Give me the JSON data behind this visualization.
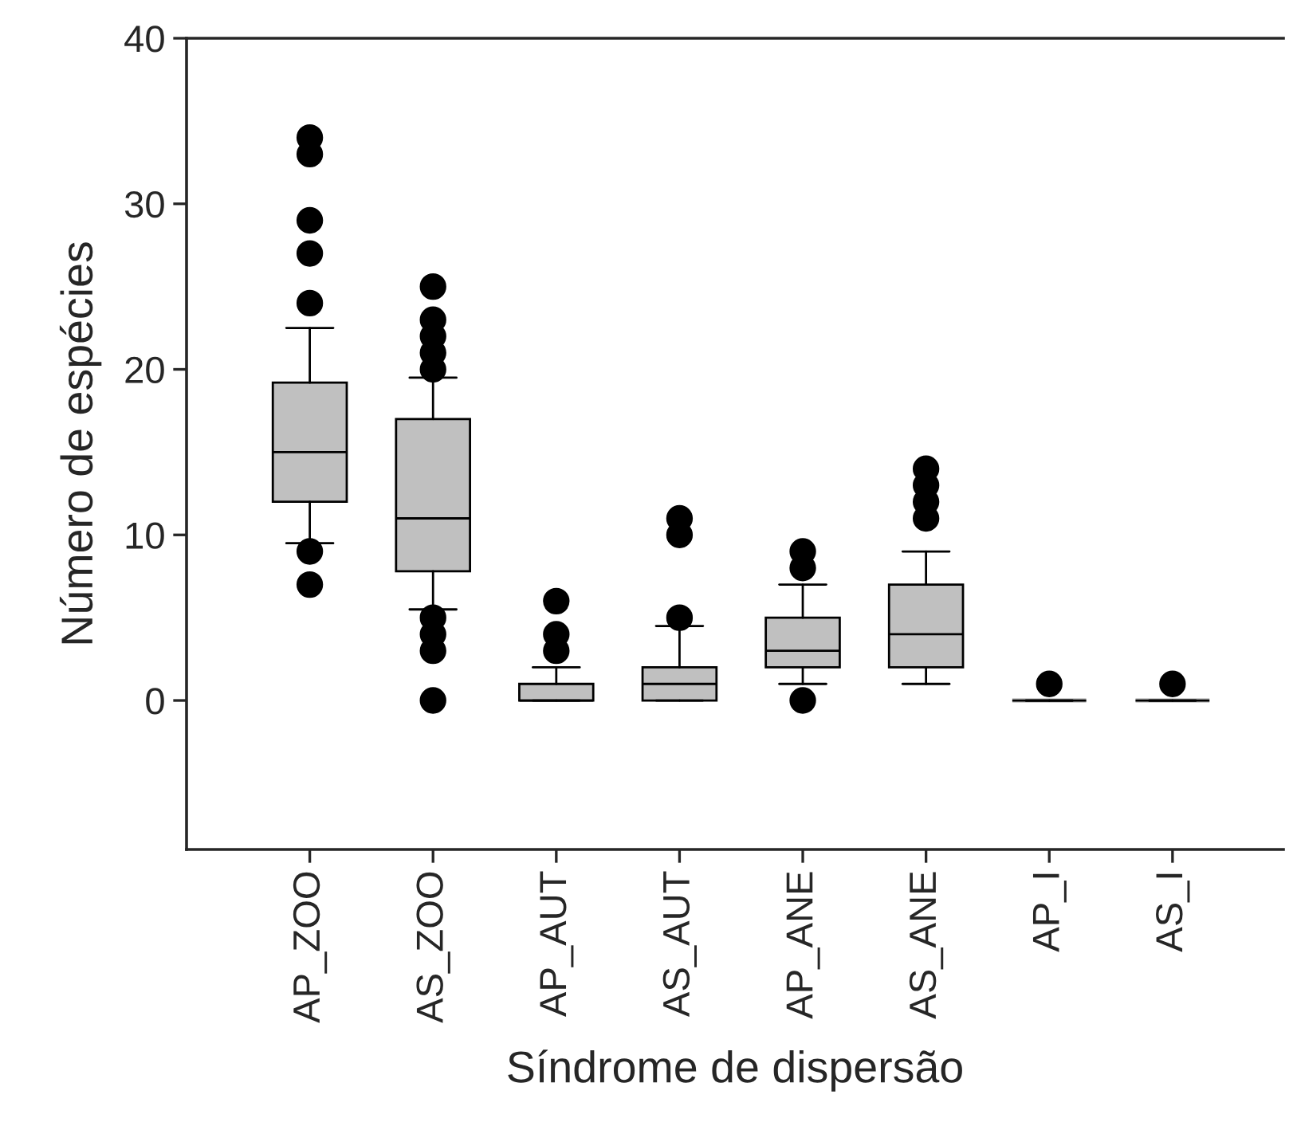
{
  "chart_data": {
    "type": "box",
    "xlabel": "Síndrome de dispersão",
    "ylabel": "Número de espécies",
    "categories": [
      "AP_ZOO",
      "AS_ZOO",
      "AP_AUT",
      "AS_AUT",
      "AP_ANE",
      "AS_ANE",
      "AP_I",
      "AS_I"
    ],
    "color": "#c0c0c0",
    "boxes": [
      {
        "low": 9.5,
        "q1": 12,
        "median": 15,
        "q3": 19.2,
        "high": 22.5,
        "outliers": [
          7,
          9,
          24,
          27,
          29,
          33,
          34
        ]
      },
      {
        "low": 5.5,
        "q1": 7.8,
        "median": 11,
        "q3": 17,
        "high": 19.5,
        "outliers": [
          0,
          3,
          4,
          5,
          20,
          21,
          22,
          23,
          25
        ]
      },
      {
        "low": 0,
        "q1": 0,
        "median": 0,
        "q3": 1,
        "high": 2,
        "outliers": [
          3,
          4,
          6
        ]
      },
      {
        "low": 0,
        "q1": 0,
        "median": 1,
        "q3": 2,
        "high": 4.5,
        "outliers": [
          5,
          10,
          11
        ]
      },
      {
        "low": 1,
        "q1": 2,
        "median": 3,
        "q3": 5,
        "high": 7,
        "outliers": [
          0,
          8,
          9
        ]
      },
      {
        "low": 1,
        "q1": 2,
        "median": 4,
        "q3": 7,
        "high": 9,
        "outliers": [
          11,
          12,
          13,
          14
        ]
      },
      {
        "low": 0,
        "q1": 0,
        "median": 0,
        "q3": 0,
        "high": 0,
        "outliers": [
          1
        ]
      },
      {
        "low": 0,
        "q1": 0,
        "median": 0,
        "q3": 0,
        "high": 0,
        "outliers": [
          1
        ]
      }
    ],
    "ylim": [
      -9,
      40
    ],
    "yticks": [
      0,
      10,
      20,
      30,
      40
    ],
    "grid": false,
    "legend": false
  }
}
